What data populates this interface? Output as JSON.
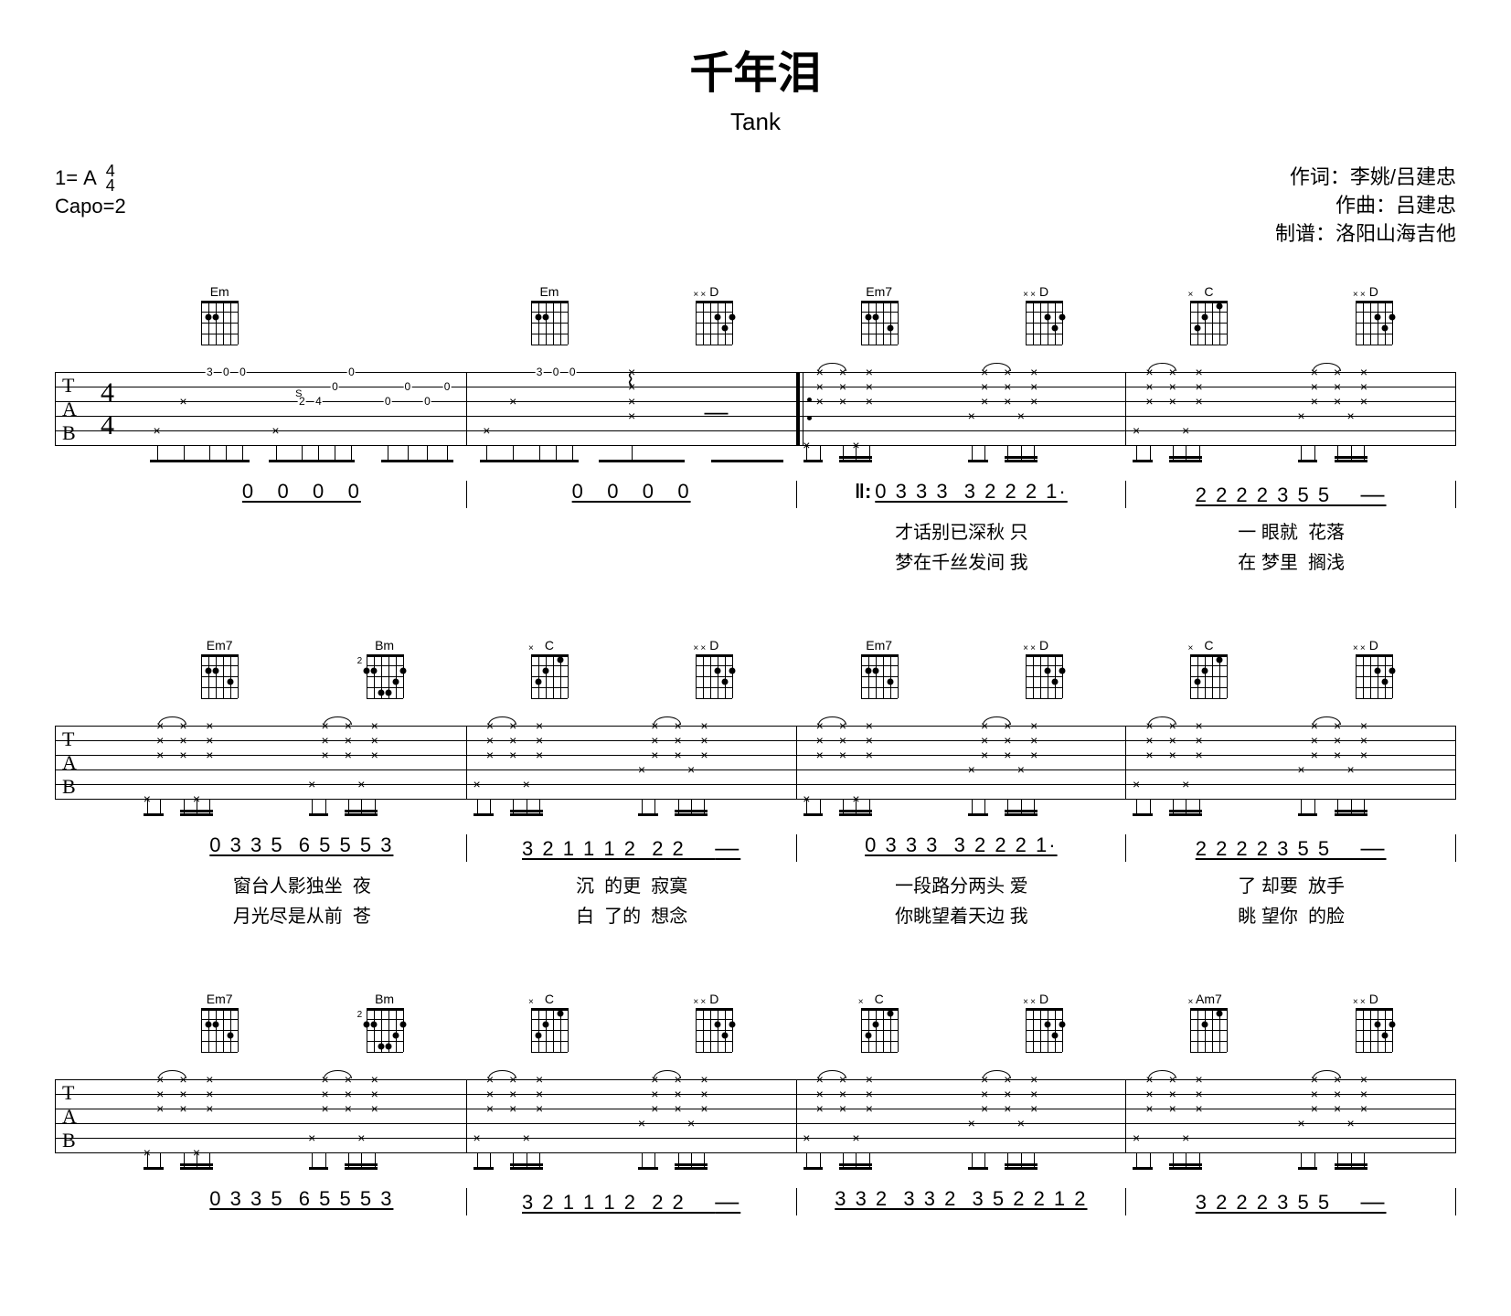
{
  "title": "千年泪",
  "artist": "Tank",
  "key_prefix": "1=",
  "key": "A",
  "time_top": "4",
  "time_bottom": "4",
  "capo": "Capo=2",
  "credits": {
    "lyricist": "作词：李姚/吕建忠",
    "composer": "作曲：吕建忠",
    "transcriber": "制谱：洛阳山海吉他"
  },
  "chords": {
    "Em": {
      "name": "Em",
      "frets": [
        null,
        2,
        2,
        0,
        0,
        0
      ],
      "muted": [],
      "fret_pos": null
    },
    "D": {
      "name": "D",
      "frets": [
        null,
        null,
        0,
        2,
        3,
        2
      ],
      "muted": [
        0,
        1
      ],
      "fret_pos": null
    },
    "Em7": {
      "name": "Em7",
      "frets": [
        null,
        2,
        2,
        0,
        3,
        0
      ],
      "muted": [],
      "fret_pos": null
    },
    "C": {
      "name": "C",
      "frets": [
        null,
        3,
        2,
        0,
        1,
        0
      ],
      "muted": [
        0
      ],
      "fret_pos": null
    },
    "Bm": {
      "name": "Bm",
      "frets": [
        2,
        2,
        4,
        4,
        3,
        2
      ],
      "muted": [],
      "fret_pos": "2"
    },
    "Am7": {
      "name": "Am7",
      "frets": [
        null,
        0,
        2,
        0,
        1,
        0
      ],
      "muted": [
        0
      ],
      "fret_pos": null
    }
  },
  "tab_label": {
    "t": "T",
    "a": "A",
    "b": "B"
  },
  "systems": [
    {
      "measures": [
        {
          "chords": [
            "Em",
            ""
          ],
          "nums": "0   0   0   0",
          "lyric1": "",
          "lyric2": "",
          "intro": true
        },
        {
          "chords": [
            "Em",
            "D"
          ],
          "nums": "0   0   0   0",
          "lyric1": "",
          "lyric2": ""
        },
        {
          "chords": [
            "Em7",
            "D"
          ],
          "nums": "0 3 3 3  3 2 2 2 1·",
          "lyric1": "才话别已深秋 只",
          "lyric2": "梦在千丝发间 我",
          "repeat": true
        },
        {
          "chords": [
            "C",
            "D"
          ],
          "nums": "2 2 2 2 3 5 5    —",
          "lyric1": "一 眼就  花落",
          "lyric2": "在 梦里  搁浅"
        }
      ]
    },
    {
      "measures": [
        {
          "chords": [
            "Em7",
            "Bm"
          ],
          "nums": "0 3 3 5  6 5 5 5 3",
          "lyric1": "窗台人影独坐  夜",
          "lyric2": "月光尽是从前  苍"
        },
        {
          "chords": [
            "C",
            "D"
          ],
          "nums": "3 2 1 1 1 2  2 2    —",
          "lyric1": "沉  的更  寂寞",
          "lyric2": "白  了的  想念"
        },
        {
          "chords": [
            "Em7",
            "D"
          ],
          "nums": "0 3 3 3  3 2 2 2 1·",
          "lyric1": "一段路分两头 爱",
          "lyric2": "你眺望着天边 我"
        },
        {
          "chords": [
            "C",
            "D"
          ],
          "nums": "2 2 2 2 3 5 5    —",
          "lyric1": "了 却要  放手",
          "lyric2": "眺 望你  的脸"
        }
      ]
    },
    {
      "measures": [
        {
          "chords": [
            "Em7",
            "Bm"
          ],
          "nums": "0 3 3 5  6 5 5 5 3",
          "lyric1": "",
          "lyric2": ""
        },
        {
          "chords": [
            "C",
            "D"
          ],
          "nums": "3 2 1 1 1 2  2 2    —",
          "lyric1": "",
          "lyric2": ""
        },
        {
          "chords": [
            "C",
            "D"
          ],
          "nums": "3 3 2  3 3 2  3 5 2 2 1 2",
          "lyric1": "",
          "lyric2": ""
        },
        {
          "chords": [
            "Am7",
            "D"
          ],
          "nums": "3 2 2 2 3 5 5    —",
          "lyric1": "",
          "lyric2": ""
        }
      ]
    }
  ],
  "intro_tab": {
    "m1": [
      {
        "s": 5,
        "f": "×",
        "p": 6
      },
      {
        "s": 3,
        "f": "×",
        "p": 14
      },
      {
        "s": 1,
        "f": "3",
        "p": 22
      },
      {
        "s": 1,
        "f": "0",
        "p": 27
      },
      {
        "s": 1,
        "f": "0",
        "p": 32
      },
      {
        "s": 5,
        "f": "×",
        "p": 42
      },
      {
        "s": 3,
        "f": "2",
        "p": 50,
        "ann": "S"
      },
      {
        "s": 3,
        "f": "4",
        "p": 55
      },
      {
        "s": 2,
        "f": "0",
        "p": 60
      },
      {
        "s": 1,
        "f": "0",
        "p": 65
      },
      {
        "s": 3,
        "f": "0",
        "p": 76
      },
      {
        "s": 2,
        "f": "0",
        "p": 82
      },
      {
        "s": 3,
        "f": "0",
        "p": 88
      },
      {
        "s": 2,
        "f": "0",
        "p": 94
      }
    ],
    "m2": [
      {
        "s": 5,
        "f": "×",
        "p": 6
      },
      {
        "s": 3,
        "f": "×",
        "p": 14
      },
      {
        "s": 1,
        "f": "3",
        "p": 22
      },
      {
        "s": 1,
        "f": "0",
        "p": 27
      },
      {
        "s": 1,
        "f": "0",
        "p": 32
      },
      {
        "s": 4,
        "f": "×",
        "p": 50,
        "arp": true
      },
      {
        "s": 3,
        "f": "×",
        "p": 50
      },
      {
        "s": 2,
        "f": "×",
        "p": 50
      },
      {
        "s": 1,
        "f": "×",
        "p": 50
      }
    ]
  },
  "strum_pattern": [
    {
      "p": 6,
      "s": 5,
      "x": true
    },
    {
      "p": 14,
      "s": 3,
      "x": true
    },
    {
      "p": 14,
      "s": 2,
      "x": true
    },
    {
      "p": 14,
      "s": 1,
      "x": true,
      "tie": true
    },
    {
      "p": 28,
      "s": 3,
      "x": true
    },
    {
      "p": 28,
      "s": 2,
      "x": true
    },
    {
      "p": 28,
      "s": 1,
      "x": true
    },
    {
      "p": 36,
      "s": 5,
      "x": true
    },
    {
      "p": 44,
      "s": 3,
      "x": true
    },
    {
      "p": 44,
      "s": 2,
      "x": true
    },
    {
      "p": 44,
      "s": 1,
      "x": true
    }
  ],
  "colors": {
    "ink": "#000000",
    "paper": "#ffffff"
  }
}
